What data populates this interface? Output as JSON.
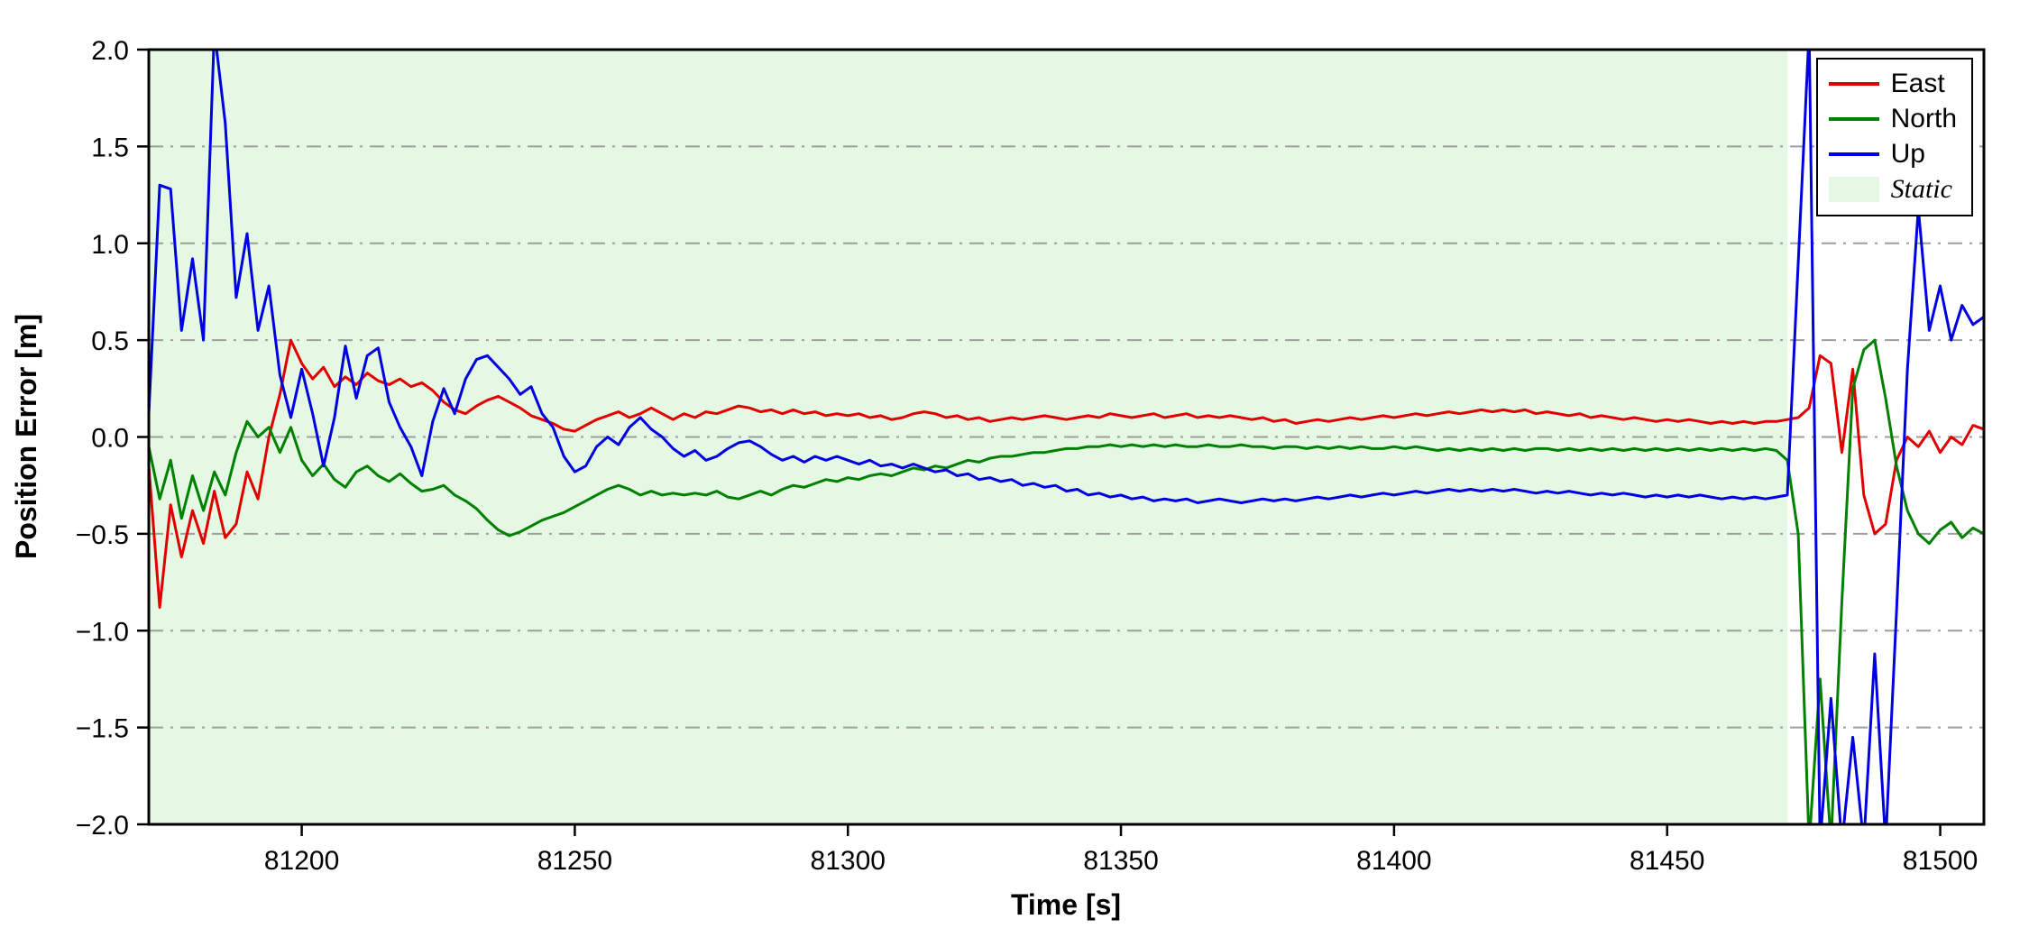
{
  "figure": {
    "background": "#ffffff"
  },
  "legend": {
    "position": "upper right",
    "entries": [
      {
        "label": "East",
        "color": "#e00000",
        "type": "line"
      },
      {
        "label": "North",
        "color": "#008000",
        "type": "line"
      },
      {
        "label": "Up",
        "color": "#0000e0",
        "type": "line"
      },
      {
        "label": "Static",
        "color": "#e4f8e3",
        "type": "patch"
      }
    ]
  },
  "chart_data": {
    "type": "line",
    "title": "",
    "xlabel": "Time [s]",
    "ylabel": "Position Error [m]",
    "xlim": [
      81172,
      81508
    ],
    "ylim": [
      -2.0,
      2.0
    ],
    "x_ticks": [
      81200,
      81250,
      81300,
      81350,
      81400,
      81450,
      81500
    ],
    "y_ticks": [
      -2.0,
      -1.5,
      -1.0,
      -0.5,
      0.0,
      0.5,
      1.0,
      1.5,
      2.0
    ],
    "grid": "horizontal dash-dot gray",
    "legend_position": "upper right",
    "frame_color": "#000000",
    "grid_color": "#9e9e9e",
    "x_start": 81172,
    "x_step": 2,
    "regions": [
      {
        "label": "Static",
        "xmin": 81172,
        "xmax": 81472,
        "color": "#e4f8e3"
      }
    ],
    "series": [
      {
        "name": "East",
        "color": "#e00000",
        "values": [
          -0.15,
          -0.88,
          -0.35,
          -0.62,
          -0.38,
          -0.55,
          -0.28,
          -0.52,
          -0.45,
          -0.18,
          -0.32,
          0.0,
          0.22,
          0.5,
          0.38,
          0.3,
          0.36,
          0.26,
          0.31,
          0.27,
          0.33,
          0.29,
          0.27,
          0.3,
          0.26,
          0.28,
          0.24,
          0.18,
          0.14,
          0.12,
          0.16,
          0.19,
          0.21,
          0.18,
          0.15,
          0.11,
          0.09,
          0.07,
          0.04,
          0.03,
          0.06,
          0.09,
          0.11,
          0.13,
          0.1,
          0.12,
          0.15,
          0.12,
          0.09,
          0.12,
          0.1,
          0.13,
          0.12,
          0.14,
          0.16,
          0.15,
          0.13,
          0.14,
          0.12,
          0.14,
          0.12,
          0.13,
          0.11,
          0.12,
          0.11,
          0.12,
          0.1,
          0.11,
          0.09,
          0.1,
          0.12,
          0.13,
          0.12,
          0.1,
          0.11,
          0.09,
          0.1,
          0.08,
          0.09,
          0.1,
          0.09,
          0.1,
          0.11,
          0.1,
          0.09,
          0.1,
          0.11,
          0.1,
          0.12,
          0.11,
          0.1,
          0.11,
          0.12,
          0.1,
          0.11,
          0.12,
          0.1,
          0.11,
          0.1,
          0.11,
          0.1,
          0.09,
          0.1,
          0.08,
          0.09,
          0.07,
          0.08,
          0.09,
          0.08,
          0.09,
          0.1,
          0.09,
          0.1,
          0.11,
          0.1,
          0.11,
          0.12,
          0.11,
          0.12,
          0.13,
          0.12,
          0.13,
          0.14,
          0.13,
          0.14,
          0.13,
          0.14,
          0.12,
          0.13,
          0.12,
          0.11,
          0.12,
          0.1,
          0.11,
          0.1,
          0.09,
          0.1,
          0.09,
          0.08,
          0.09,
          0.08,
          0.09,
          0.08,
          0.07,
          0.08,
          0.07,
          0.08,
          0.07,
          0.08,
          0.08,
          0.09,
          0.1,
          0.15,
          0.42,
          0.38,
          -0.08,
          0.35,
          -0.3,
          -0.5,
          -0.45,
          -0.12,
          0.0,
          -0.05,
          0.03,
          -0.08,
          0.0,
          -0.04,
          0.06,
          0.04
        ]
      },
      {
        "name": "North",
        "color": "#008000",
        "values": [
          -0.05,
          -0.32,
          -0.12,
          -0.42,
          -0.2,
          -0.38,
          -0.18,
          -0.3,
          -0.08,
          0.08,
          0.0,
          0.05,
          -0.08,
          0.05,
          -0.12,
          -0.2,
          -0.14,
          -0.22,
          -0.26,
          -0.18,
          -0.15,
          -0.2,
          -0.23,
          -0.19,
          -0.24,
          -0.28,
          -0.27,
          -0.25,
          -0.3,
          -0.33,
          -0.37,
          -0.43,
          -0.48,
          -0.51,
          -0.49,
          -0.46,
          -0.43,
          -0.41,
          -0.39,
          -0.36,
          -0.33,
          -0.3,
          -0.27,
          -0.25,
          -0.27,
          -0.3,
          -0.28,
          -0.3,
          -0.29,
          -0.3,
          -0.29,
          -0.3,
          -0.28,
          -0.31,
          -0.32,
          -0.3,
          -0.28,
          -0.3,
          -0.27,
          -0.25,
          -0.26,
          -0.24,
          -0.22,
          -0.23,
          -0.21,
          -0.22,
          -0.2,
          -0.19,
          -0.2,
          -0.18,
          -0.16,
          -0.17,
          -0.15,
          -0.16,
          -0.14,
          -0.12,
          -0.13,
          -0.11,
          -0.1,
          -0.1,
          -0.09,
          -0.08,
          -0.08,
          -0.07,
          -0.06,
          -0.06,
          -0.05,
          -0.05,
          -0.04,
          -0.05,
          -0.04,
          -0.05,
          -0.04,
          -0.05,
          -0.04,
          -0.05,
          -0.05,
          -0.04,
          -0.05,
          -0.05,
          -0.04,
          -0.05,
          -0.05,
          -0.06,
          -0.05,
          -0.05,
          -0.06,
          -0.05,
          -0.06,
          -0.05,
          -0.06,
          -0.05,
          -0.06,
          -0.06,
          -0.05,
          -0.06,
          -0.05,
          -0.06,
          -0.07,
          -0.06,
          -0.07,
          -0.06,
          -0.07,
          -0.06,
          -0.07,
          -0.06,
          -0.07,
          -0.06,
          -0.06,
          -0.07,
          -0.06,
          -0.07,
          -0.06,
          -0.07,
          -0.06,
          -0.07,
          -0.06,
          -0.07,
          -0.06,
          -0.07,
          -0.06,
          -0.07,
          -0.06,
          -0.07,
          -0.06,
          -0.07,
          -0.06,
          -0.07,
          -0.06,
          -0.07,
          -0.12,
          -0.5,
          -2.1,
          -1.25,
          -2.1,
          -0.85,
          0.25,
          0.45,
          0.5,
          0.2,
          -0.15,
          -0.38,
          -0.5,
          -0.55,
          -0.48,
          -0.44,
          -0.52,
          -0.47,
          -0.5
        ]
      },
      {
        "name": "Up",
        "color": "#0000e0",
        "values": [
          0.12,
          1.3,
          1.28,
          0.55,
          0.92,
          0.5,
          2.1,
          1.62,
          0.72,
          1.05,
          0.55,
          0.78,
          0.32,
          0.1,
          0.35,
          0.12,
          -0.15,
          0.1,
          0.47,
          0.2,
          0.42,
          0.46,
          0.18,
          0.05,
          -0.05,
          -0.2,
          0.08,
          0.25,
          0.12,
          0.3,
          0.4,
          0.42,
          0.36,
          0.3,
          0.22,
          0.26,
          0.12,
          0.05,
          -0.1,
          -0.18,
          -0.15,
          -0.05,
          0.0,
          -0.04,
          0.05,
          0.1,
          0.04,
          0.0,
          -0.06,
          -0.1,
          -0.07,
          -0.12,
          -0.1,
          -0.06,
          -0.03,
          -0.02,
          -0.05,
          -0.09,
          -0.12,
          -0.1,
          -0.13,
          -0.1,
          -0.12,
          -0.1,
          -0.12,
          -0.14,
          -0.12,
          -0.15,
          -0.14,
          -0.16,
          -0.14,
          -0.16,
          -0.18,
          -0.17,
          -0.2,
          -0.19,
          -0.22,
          -0.21,
          -0.23,
          -0.22,
          -0.25,
          -0.24,
          -0.26,
          -0.25,
          -0.28,
          -0.27,
          -0.3,
          -0.29,
          -0.31,
          -0.3,
          -0.32,
          -0.31,
          -0.33,
          -0.32,
          -0.33,
          -0.32,
          -0.34,
          -0.33,
          -0.32,
          -0.33,
          -0.34,
          -0.33,
          -0.32,
          -0.33,
          -0.32,
          -0.33,
          -0.32,
          -0.31,
          -0.32,
          -0.31,
          -0.3,
          -0.31,
          -0.3,
          -0.29,
          -0.3,
          -0.29,
          -0.28,
          -0.29,
          -0.28,
          -0.27,
          -0.28,
          -0.27,
          -0.28,
          -0.27,
          -0.28,
          -0.27,
          -0.28,
          -0.29,
          -0.28,
          -0.29,
          -0.28,
          -0.29,
          -0.3,
          -0.29,
          -0.3,
          -0.29,
          -0.3,
          -0.31,
          -0.3,
          -0.31,
          -0.3,
          -0.31,
          -0.3,
          -0.31,
          -0.32,
          -0.31,
          -0.32,
          -0.31,
          -0.32,
          -0.31,
          -0.3,
          0.9,
          2.1,
          -2.1,
          -1.35,
          -2.1,
          -1.55,
          -2.1,
          -1.12,
          -2.1,
          -0.9,
          0.35,
          1.18,
          0.55,
          0.78,
          0.5,
          0.68,
          0.58,
          0.62
        ]
      }
    ]
  }
}
